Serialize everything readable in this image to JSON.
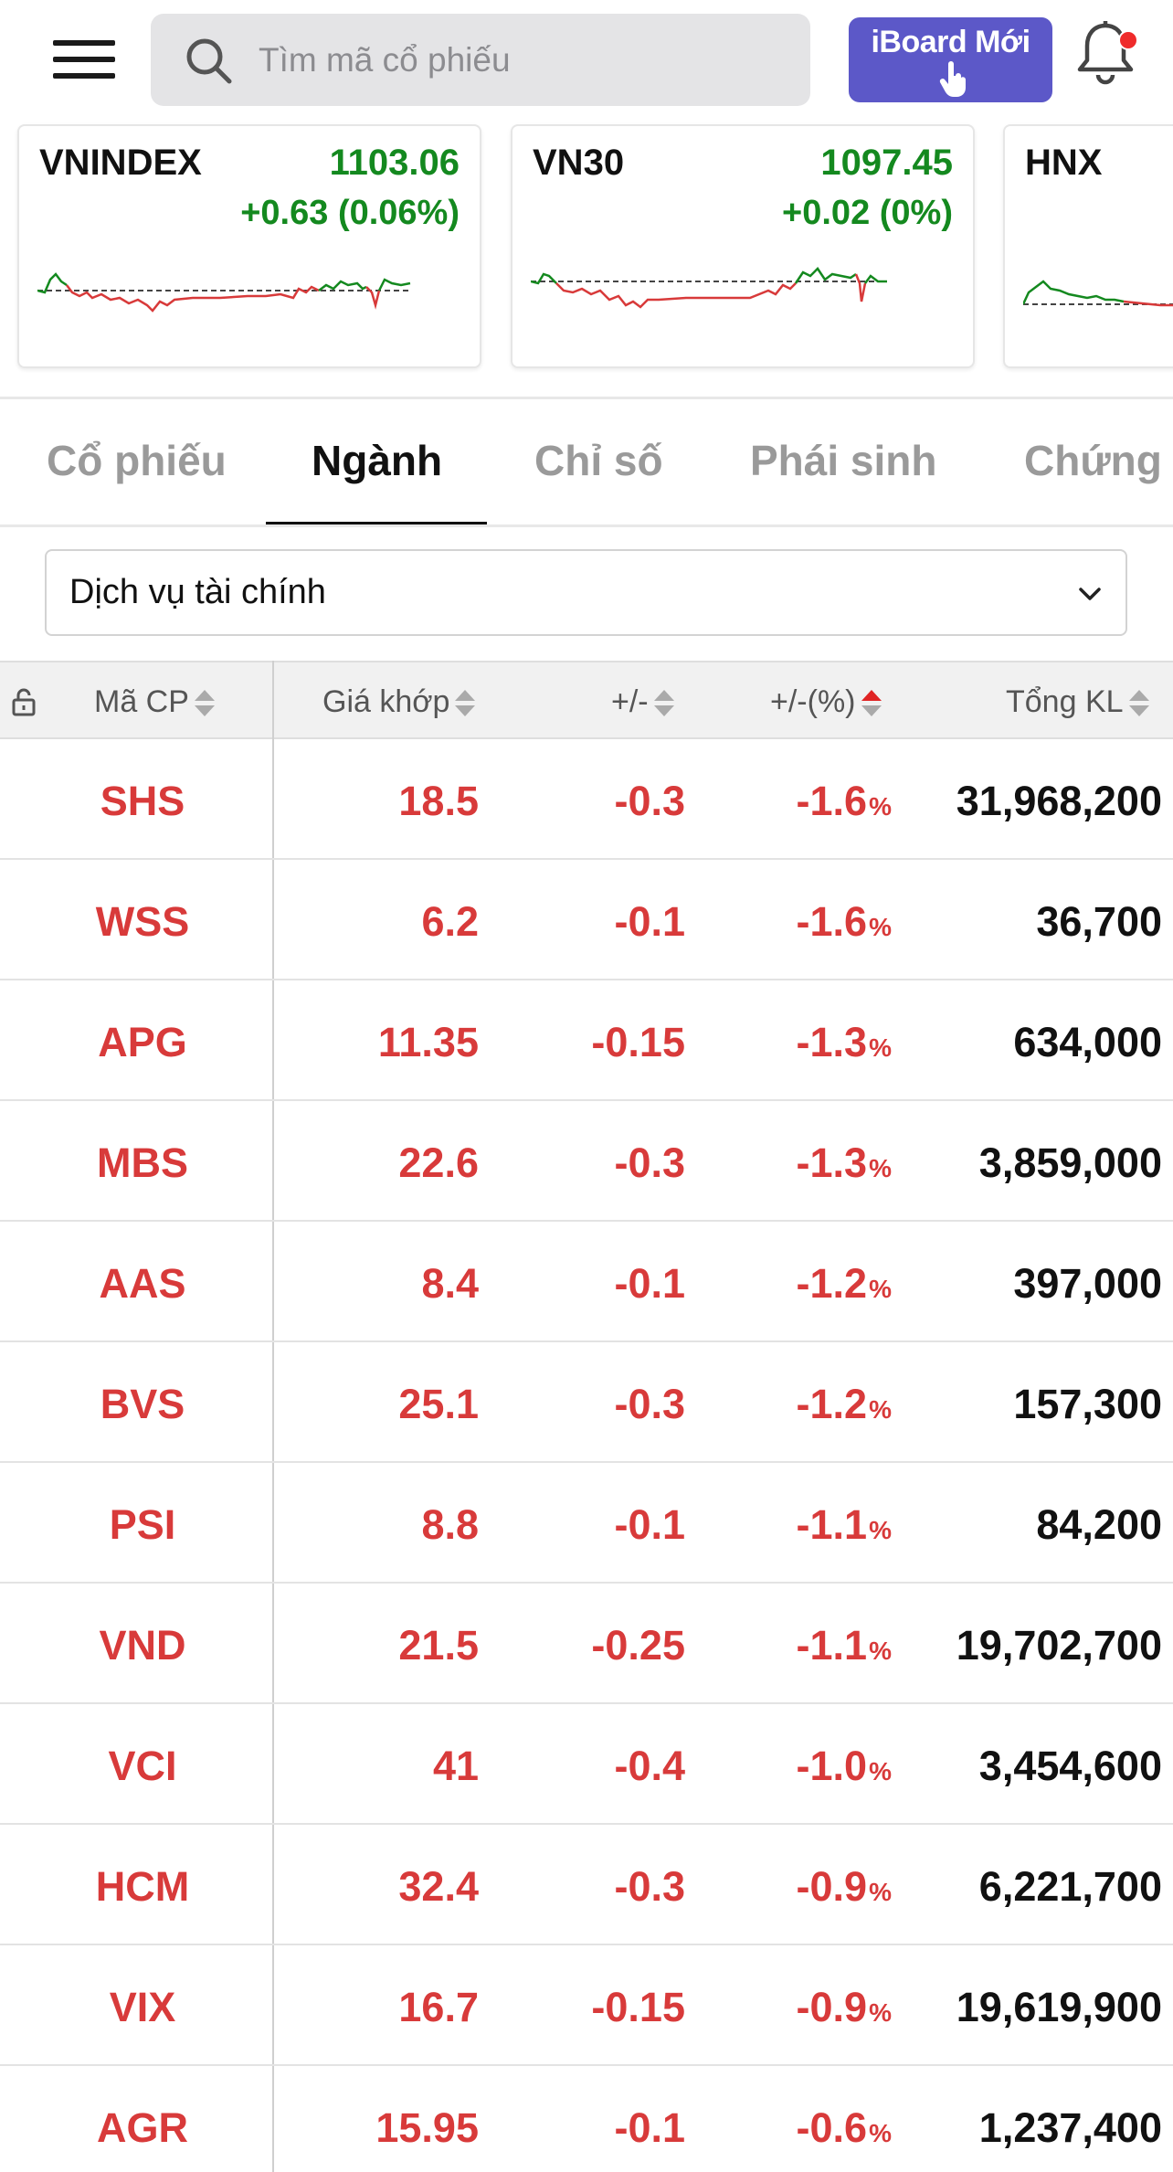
{
  "header": {
    "search_placeholder": "Tìm mã cổ phiếu",
    "iboard_label": "iBoard Mới"
  },
  "indices": [
    {
      "name": "VNINDEX",
      "value": "1103.06",
      "change": "+0.63 (0.06%)"
    },
    {
      "name": "VN30",
      "value": "1097.45",
      "change": "+0.02 (0%)"
    },
    {
      "name": "HNX",
      "value": "",
      "change": ""
    }
  ],
  "tabs": [
    {
      "label": "Cổ phiếu",
      "active": false
    },
    {
      "label": "Ngành",
      "active": true
    },
    {
      "label": "Chỉ số",
      "active": false
    },
    {
      "label": "Phái sinh",
      "active": false
    },
    {
      "label": "Chứng quyền",
      "active": false
    }
  ],
  "filter": {
    "selected": "Dịch vụ tài chính"
  },
  "table": {
    "columns": [
      "Mã CP",
      "Giá khớp",
      "+/-",
      "+/-(%)",
      "Tổng KL"
    ],
    "pct_unit": "%",
    "rows": [
      {
        "code": "SHS",
        "price": "18.5",
        "change": "-0.3",
        "pct": "-1.6",
        "volume": "31,968,200"
      },
      {
        "code": "WSS",
        "price": "6.2",
        "change": "-0.1",
        "pct": "-1.6",
        "volume": "36,700"
      },
      {
        "code": "APG",
        "price": "11.35",
        "change": "-0.15",
        "pct": "-1.3",
        "volume": "634,000"
      },
      {
        "code": "MBS",
        "price": "22.6",
        "change": "-0.3",
        "pct": "-1.3",
        "volume": "3,859,000"
      },
      {
        "code": "AAS",
        "price": "8.4",
        "change": "-0.1",
        "pct": "-1.2",
        "volume": "397,000"
      },
      {
        "code": "BVS",
        "price": "25.1",
        "change": "-0.3",
        "pct": "-1.2",
        "volume": "157,300"
      },
      {
        "code": "PSI",
        "price": "8.8",
        "change": "-0.1",
        "pct": "-1.1",
        "volume": "84,200"
      },
      {
        "code": "VND",
        "price": "21.5",
        "change": "-0.25",
        "pct": "-1.1",
        "volume": "19,702,700"
      },
      {
        "code": "VCI",
        "price": "41",
        "change": "-0.4",
        "pct": "-1.0",
        "volume": "3,454,600"
      },
      {
        "code": "HCM",
        "price": "32.4",
        "change": "-0.3",
        "pct": "-0.9",
        "volume": "6,221,700"
      },
      {
        "code": "VIX",
        "price": "16.7",
        "change": "-0.15",
        "pct": "-0.9",
        "volume": "19,619,900"
      },
      {
        "code": "AGR",
        "price": "15.95",
        "change": "-0.1",
        "pct": "-0.6",
        "volume": "1,237,400"
      }
    ]
  },
  "colors": {
    "up": "#14891f",
    "down": "#d83a3a",
    "accent": "#5c58c8",
    "notification_dot": "#ef2b2b"
  },
  "icons": [
    "menu-icon",
    "search-icon",
    "hand-pointer-icon",
    "bell-icon",
    "chevron-down-icon",
    "lock-icon",
    "sort-icon"
  ]
}
